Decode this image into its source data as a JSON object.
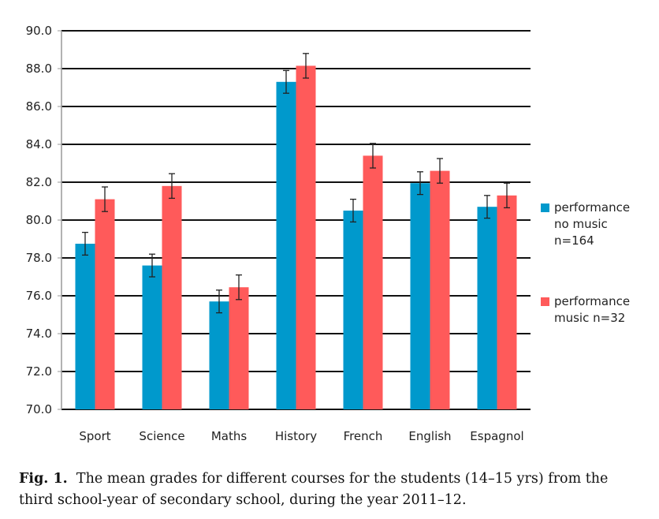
{
  "chart_data": {
    "type": "bar",
    "categories": [
      "Sport",
      "Science",
      "Maths",
      "History",
      "French",
      "English",
      "Espagnol"
    ],
    "series": [
      {
        "name": "performance no music n=164",
        "color": "#0099CC",
        "values": [
          78.75,
          77.6,
          75.7,
          87.3,
          80.5,
          81.95,
          80.7
        ],
        "error": [
          0.6,
          0.6,
          0.6,
          0.6,
          0.6,
          0.6,
          0.6
        ]
      },
      {
        "name": "performance music n=32",
        "color": "#FF5A5A",
        "values": [
          81.1,
          81.8,
          76.45,
          88.15,
          83.4,
          82.6,
          81.3
        ],
        "error": [
          0.65,
          0.65,
          0.65,
          0.65,
          0.65,
          0.65,
          0.65
        ]
      }
    ],
    "ylim": [
      70,
      90
    ],
    "yticks": [
      "70.0",
      "72.0",
      "74.0",
      "76.0",
      "78.0",
      "80.0",
      "82.0",
      "84.0",
      "86.0",
      "88.0",
      "90.0"
    ],
    "grid": true,
    "legend_position": "right"
  },
  "legend": {
    "no_music_lines": [
      "performance",
      "no music",
      "n=164"
    ],
    "music_lines": [
      "performance",
      "music n=32"
    ]
  },
  "caption": {
    "label": "Fig. 1.",
    "text": "The mean grades for different courses for the students (14–15 yrs) from the third school-year of secondary school, during the year 2011–12."
  }
}
